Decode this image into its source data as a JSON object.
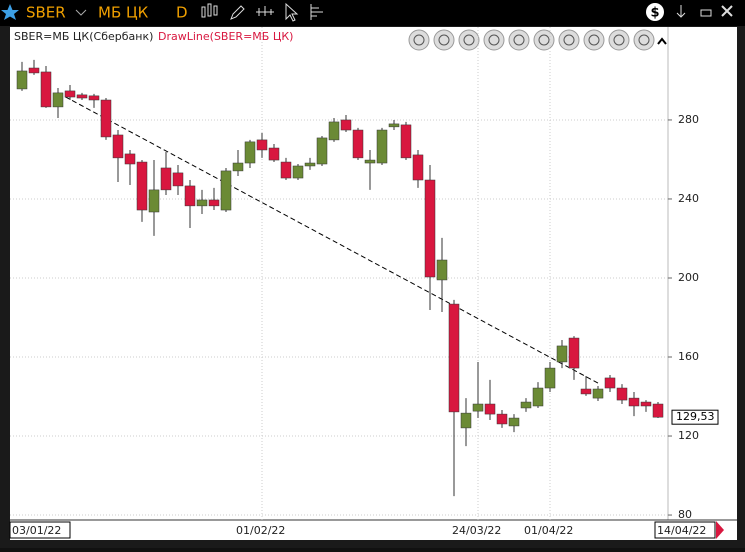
{
  "chart_data": {
    "type": "candlestick",
    "instrument": "SBER",
    "exchange": "МБ ЦК",
    "period": "D",
    "series_label": "SBER=МБ ЦК(Сбербанк)",
    "trendline": {
      "label": "DrawLine(SBER=МБ ЦК)",
      "start_index": 3,
      "start_value": 293.7,
      "end_index": 48,
      "end_value": 146.8
    },
    "categories": [
      "03/01/22",
      null,
      null,
      null,
      null,
      null,
      null,
      null,
      null,
      null,
      null,
      null,
      null,
      null,
      null,
      null,
      null,
      null,
      null,
      null,
      "01/02/22",
      null,
      null,
      null,
      null,
      null,
      null,
      null,
      null,
      null,
      null,
      null,
      null,
      null,
      null,
      null,
      null,
      null,
      "24/03/22",
      null,
      null,
      null,
      null,
      null,
      "01/04/22",
      null,
      null,
      null,
      null,
      null,
      null,
      null,
      null,
      "14/04/22"
    ],
    "open": [
      295.7,
      306.3,
      304.3,
      286.6,
      294.7,
      292.7,
      292.2,
      290.1,
      272.4,
      262.8,
      258.7,
      233.4,
      255.7,
      253.2,
      246.6,
      236.5,
      239.5,
      234.4,
      254.2,
      258.2,
      269.9,
      265.8,
      258.7,
      250.6,
      256.7,
      257.7,
      269.9,
      280.0,
      274.9,
      258.2,
      258.2,
      276.5,
      277.5,
      262.3,
      249.6,
      199.0,
      186.8,
      124.1,
      132.6,
      136.2,
      131.1,
      125.1,
      134.2,
      135.2,
      144.3,
      157.5,
      169.6,
      143.8,
      139.2,
      149.4,
      144.3,
      139.2,
      137.2,
      136.2
    ],
    "high": [
      309.4,
      310.4,
      307.3,
      296.2,
      297.7,
      293.7,
      293.2,
      291.1,
      274.9,
      264.8,
      259.7,
      259.7,
      263.8,
      257.2,
      249.6,
      244.6,
      245.6,
      255.7,
      264.8,
      269.9,
      273.4,
      267.8,
      260.8,
      257.7,
      260.8,
      271.9,
      281.0,
      282.5,
      276.0,
      264.8,
      276.0,
      280.0,
      279.0,
      264.8,
      257.2,
      220.3,
      188.9,
      139.2,
      157.5,
      148.4,
      133.2,
      131.1,
      139.2,
      147.3,
      157.5,
      168.6,
      170.6,
      150.4,
      145.3,
      150.9,
      146.3,
      142.3,
      138.2,
      137.2
    ],
    "low": [
      294.7,
      302.8,
      286.1,
      281.0,
      290.1,
      290.1,
      286.1,
      269.9,
      248.6,
      247.1,
      228.4,
      221.3,
      242.0,
      242.0,
      225.3,
      232.4,
      234.4,
      233.4,
      251.6,
      255.7,
      260.8,
      258.7,
      249.6,
      249.6,
      254.7,
      256.7,
      268.9,
      273.9,
      259.7,
      244.6,
      257.2,
      274.9,
      259.7,
      245.6,
      183.8,
      182.8,
      89.6,
      114.9,
      129.1,
      128.1,
      124.1,
      122.0,
      132.2,
      134.2,
      142.3,
      154.4,
      148.4,
      140.3,
      137.7,
      142.3,
      136.2,
      130.1,
      132.2,
      129.1
    ],
    "close": [
      304.8,
      303.8,
      286.6,
      293.7,
      291.6,
      291.1,
      290.1,
      271.4,
      260.8,
      257.7,
      234.4,
      244.6,
      244.6,
      246.6,
      236.5,
      239.5,
      236.5,
      254.2,
      258.2,
      268.9,
      264.8,
      259.7,
      250.6,
      256.7,
      258.2,
      270.9,
      279.0,
      274.9,
      260.8,
      259.7,
      274.9,
      278.0,
      260.8,
      249.6,
      200.5,
      209.1,
      132.2,
      131.6,
      136.2,
      131.1,
      126.1,
      129.1,
      137.2,
      144.3,
      154.4,
      165.6,
      154.4,
      141.3,
      143.8,
      144.3,
      138.2,
      135.2,
      135.2,
      129.53
    ],
    "up_color": "#6b8a35",
    "down_color": "#d8173f",
    "last_price": {
      "value": 129.53,
      "label": "129,53"
    },
    "ylim": [
      78.5,
      314.4
    ],
    "yticks": [
      80,
      120,
      160,
      200,
      240,
      280
    ],
    "grid": true
  }
}
